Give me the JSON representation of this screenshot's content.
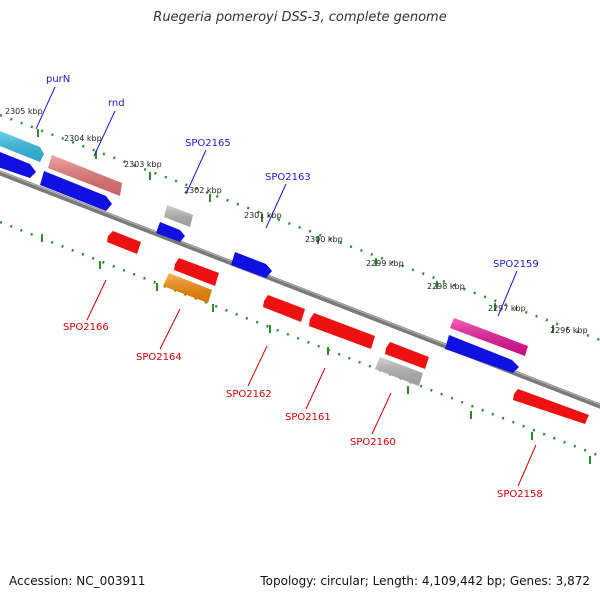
{
  "title": "Ruegeria pomeroyi DSS-3, complete genome",
  "footer": {
    "accession": "Accession: NC_003911",
    "stats": "Topology: circular; Length: 4,109,442 bp; Genes: 3,872"
  },
  "colors": {
    "backbone": "#7a7a7a",
    "tick": "#2e8b2e",
    "forward_label": "#1a1acc",
    "reverse_label": "#d10000",
    "cds_forward": "#1010e0",
    "cds_reverse": "#ee1111",
    "rna_light_blue": "#33c4ee",
    "rna_salmon": "#ee7777",
    "rna_pink": "#ee1199",
    "rna_orange": "#ff8c00",
    "rna_gray": "#bbbbbb"
  },
  "kbp_labels": [
    "2305 kbp",
    "2304 kbp",
    "2303 kbp",
    "2302 kbp",
    "2301 kbp",
    "2300 kbp",
    "2299 kbp",
    "2298 kbp",
    "2297 kbp",
    "2296 kbp"
  ],
  "forward_gene_labels": [
    "purN",
    "rnd",
    "SPO2165",
    "SPO2163",
    "SPO2159"
  ],
  "reverse_gene_labels": [
    "SPO2166",
    "SPO2164",
    "SPO2162",
    "SPO2161",
    "SPO2160",
    "SPO2158"
  ]
}
